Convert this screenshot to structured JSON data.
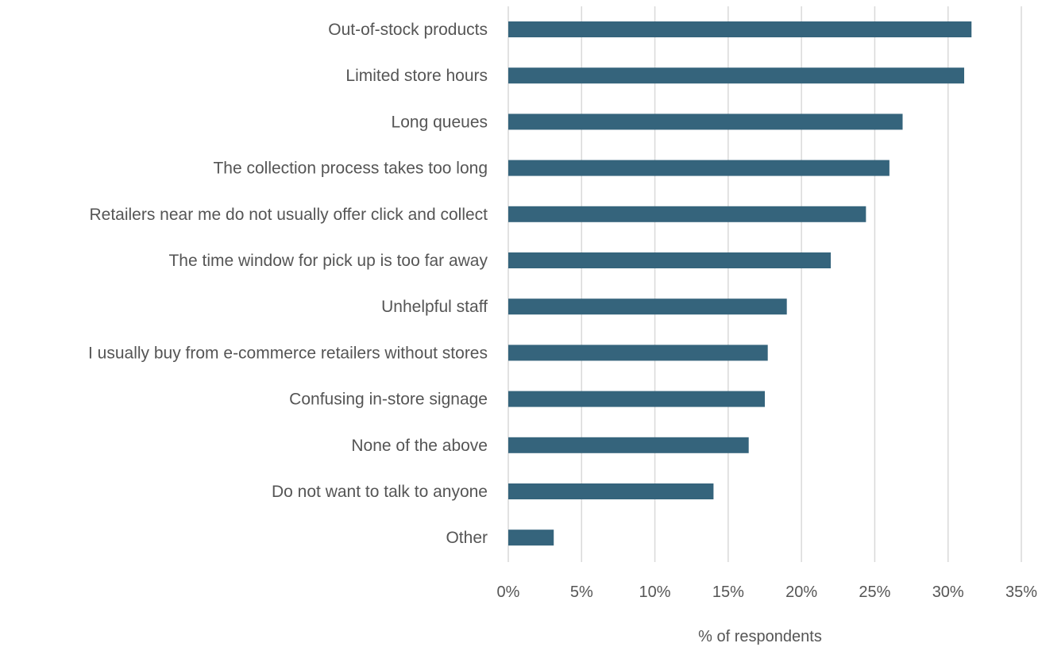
{
  "chart_data": {
    "type": "bar",
    "orientation": "horizontal",
    "title": "",
    "xlabel": "% of respondents",
    "ylabel": "",
    "xlim": [
      0,
      35
    ],
    "x_ticks": [
      "0%",
      "5%",
      "10%",
      "15%",
      "20%",
      "25%",
      "30%",
      "35%"
    ],
    "grid": "vertical",
    "categories": [
      "Out-of-stock products",
      "Limited store hours",
      "Long queues",
      "The collection process takes too long",
      "Retailers near me do not usually offer click and collect",
      "The time window for pick up is too far away",
      "Unhelpful staff",
      "I usually buy from e-commerce retailers without stores",
      "Confusing in-store signage",
      "None of the above",
      "Do not want to talk to anyone",
      "Other"
    ],
    "values": [
      31.6,
      31.1,
      26.9,
      26.0,
      24.4,
      22.0,
      19.0,
      17.7,
      17.5,
      16.4,
      14.0,
      3.1
    ],
    "bar_color": "#35647c"
  }
}
